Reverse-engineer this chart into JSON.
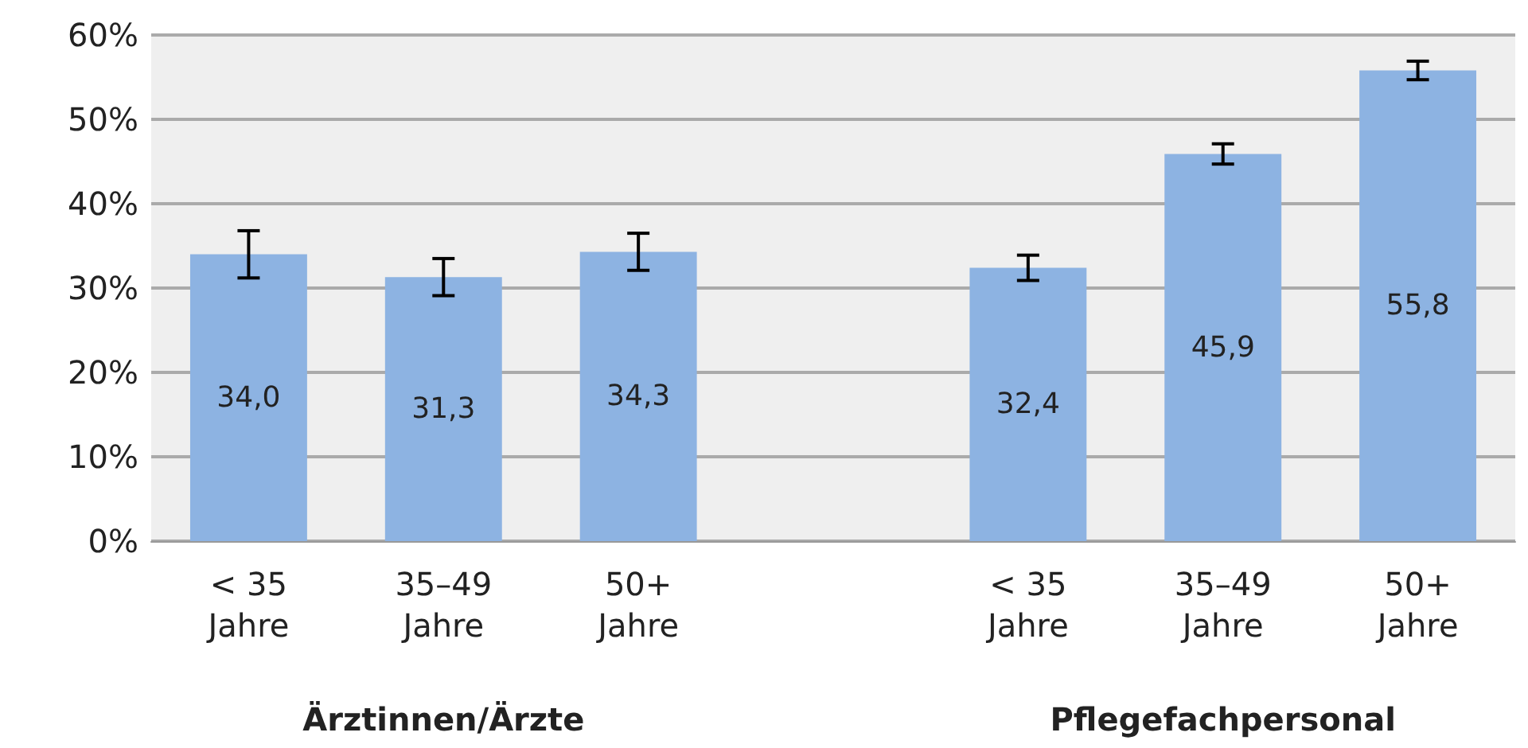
{
  "chart_data": {
    "type": "bar",
    "categories": [
      "< 35\nJahre",
      "35–49\nJahre",
      "50+\nJahre",
      null,
      "< 35\nJahre",
      "35–49\nJahre",
      "50+\nJahre"
    ],
    "values": [
      34.0,
      31.3,
      34.3,
      null,
      32.4,
      45.9,
      55.8
    ],
    "value_labels": [
      "34,0",
      "31,3",
      "34,3",
      null,
      "32,4",
      "45,9",
      "55,8"
    ],
    "errors": [
      2.8,
      2.2,
      2.2,
      null,
      1.5,
      1.2,
      1.1
    ],
    "color": "#8db3e2",
    "ylim": [
      0,
      60
    ],
    "yticks": [
      {
        "value": 0,
        "label": "0%"
      },
      {
        "value": 10,
        "label": "10%"
      },
      {
        "value": 20,
        "label": "20%"
      },
      {
        "value": 30,
        "label": "30%"
      },
      {
        "value": 40,
        "label": "40%"
      },
      {
        "value": 50,
        "label": "50%"
      },
      {
        "value": 60,
        "label": "60%"
      }
    ],
    "grid": "y",
    "annotations": [
      "Ärztinnen/Ärzte",
      "Pflegefachpersonal"
    ]
  }
}
